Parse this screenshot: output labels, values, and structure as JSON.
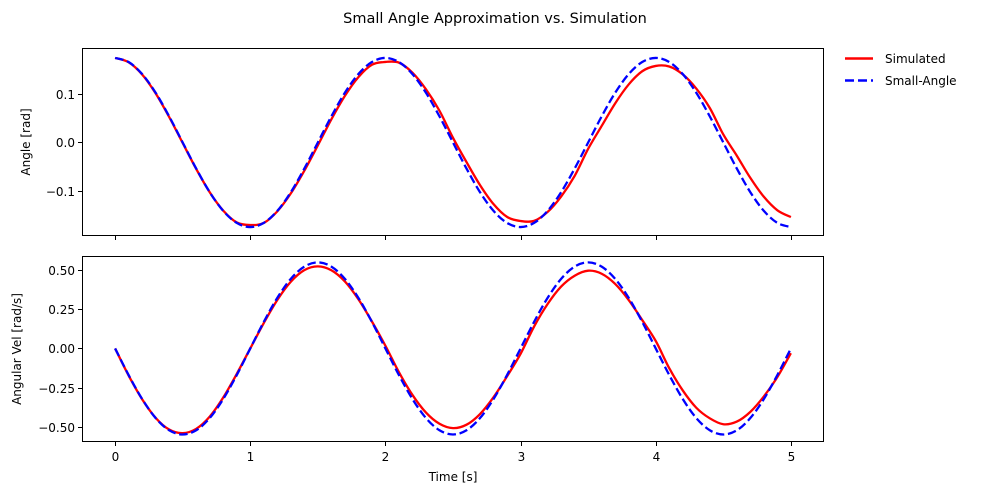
{
  "chart_data": {
    "title": "Small Angle Approximation vs. Simulation",
    "type": "line",
    "xlabel": "Time [s]",
    "xlim": [
      -0.245,
      5.245
    ],
    "xticks": [
      0,
      1,
      2,
      3,
      4,
      5
    ],
    "xtick_labels": [
      "0",
      "1",
      "2",
      "3",
      "4",
      "5"
    ],
    "grid": false,
    "legend": {
      "placement": "outside-top-right",
      "entries": [
        {
          "label": "Simulated",
          "color": "#ff0000",
          "style": "solid"
        },
        {
          "label": "Small-Angle",
          "color": "#0000ff",
          "style": "dashed"
        }
      ]
    },
    "x": [
      0,
      0.1,
      0.2,
      0.3,
      0.4,
      0.5,
      0.6,
      0.7,
      0.8,
      0.9,
      1,
      1.1,
      1.2,
      1.3,
      1.4,
      1.5,
      1.6,
      1.7,
      1.8,
      1.9,
      2,
      2.1,
      2.2,
      2.3,
      2.4,
      2.5,
      2.6,
      2.7,
      2.8,
      2.9,
      3,
      3.1,
      3.2,
      3.3,
      3.4,
      3.5,
      3.6,
      3.7,
      3.8,
      3.9,
      4,
      4.1,
      4.2,
      4.3,
      4.4,
      4.5,
      4.6,
      4.7,
      4.8,
      4.9,
      5
    ],
    "panels": [
      {
        "ylabel": "Angle [rad]",
        "ylim": [
          -0.193,
          0.195
        ],
        "yticks": [
          -0.1,
          0.0,
          0.1
        ],
        "ytick_labels": [
          "−0.1",
          "0.0",
          "0.1"
        ],
        "show_xtick_labels": false,
        "series": [
          {
            "name": "Simulated",
            "color": "#ff0000",
            "style": "solid",
            "values": [
              0.1745,
              0.1656,
              0.1404,
              0.1014,
              0.0526,
              -0.0011,
              -0.0546,
              -0.1026,
              -0.1406,
              -0.165,
              -0.1704,
              -0.166,
              -0.1421,
              -0.1051,
              -0.0582,
              -0.0059,
              0.0477,
              0.0961,
              0.1349,
              0.1604,
              0.1662,
              0.1648,
              0.144,
              0.1097,
              0.0655,
              0.0096,
              -0.0405,
              -0.088,
              -0.1273,
              -0.1536,
              -0.1621,
              -0.1618,
              -0.1433,
              -0.1115,
              -0.069,
              -0.0131,
              0.0341,
              0.0808,
              0.1198,
              0.147,
              0.158,
              0.1568,
              0.1405,
              0.1113,
              0.0712,
              0.0165,
              -0.0273,
              -0.0731,
              -0.1121,
              -0.1399,
              -0.1539
            ]
          },
          {
            "name": "Small-Angle",
            "color": "#0000ff",
            "style": "dashed",
            "values": [
              0.1745,
              0.166,
              0.1412,
              0.1026,
              0.0539,
              0.0,
              -0.0539,
              -0.1026,
              -0.1412,
              -0.166,
              -0.1745,
              -0.166,
              -0.1412,
              -0.1026,
              -0.0539,
              0.0,
              0.0539,
              0.1026,
              0.1412,
              0.166,
              0.1745,
              0.166,
              0.1412,
              0.1026,
              0.0539,
              0.0,
              -0.0539,
              -0.1026,
              -0.1412,
              -0.166,
              -0.1745,
              -0.166,
              -0.1412,
              -0.1026,
              -0.0539,
              0.0,
              0.0539,
              0.1026,
              0.1412,
              0.166,
              0.1745,
              0.166,
              0.1412,
              0.1026,
              0.0539,
              0.0,
              -0.0539,
              -0.1026,
              -0.1412,
              -0.166,
              -0.1745
            ]
          }
        ]
      },
      {
        "ylabel": "Angular Vel [rad/s]",
        "ylim": [
          -0.596,
          0.589
        ],
        "yticks": [
          -0.5,
          -0.25,
          0.0,
          0.25,
          0.5
        ],
        "ytick_labels": [
          "−0.50",
          "−0.25",
          "0.00",
          "0.25",
          "0.50"
        ],
        "show_xtick_labels": true,
        "series": [
          {
            "name": "Simulated",
            "color": "#ff0000",
            "style": "solid",
            "values": [
              0.0,
              -0.1725,
              -0.3236,
              -0.442,
              -0.5167,
              -0.5397,
              -0.5119,
              -0.4342,
              -0.3128,
              -0.162,
              0.0,
              0.162,
              0.3089,
              0.425,
              0.4989,
              0.523,
              0.4981,
              0.4267,
              0.3134,
              0.1717,
              0.0173,
              -0.1514,
              -0.2961,
              -0.4083,
              -0.4797,
              -0.5076,
              -0.4857,
              -0.4177,
              -0.3106,
              -0.1772,
              -0.0342,
              0.1395,
              0.2831,
              0.3943,
              0.4634,
              0.4955,
              0.4761,
              0.411,
              0.3086,
              0.1809,
              0.0476,
              -0.1258,
              -0.2676,
              -0.3778,
              -0.4452,
              -0.483,
              -0.466,
              -0.4039,
              -0.3056,
              -0.1818,
              -0.03
            ]
          },
          {
            "name": "Small-Angle",
            "color": "#0000ff",
            "style": "dashed",
            "values": [
              0.0,
              -0.1694,
              -0.3222,
              -0.4435,
              -0.5214,
              -0.5482,
              -0.5214,
              -0.4435,
              -0.3222,
              -0.1694,
              0.0,
              0.1694,
              0.3222,
              0.4435,
              0.5214,
              0.5482,
              0.5214,
              0.4435,
              0.3222,
              0.1694,
              0.0,
              -0.1694,
              -0.3222,
              -0.4435,
              -0.5214,
              -0.5482,
              -0.5214,
              -0.4435,
              -0.3222,
              -0.1694,
              0.0,
              0.1694,
              0.3222,
              0.4435,
              0.5214,
              0.5482,
              0.5214,
              0.4435,
              0.3222,
              0.1694,
              0.0,
              -0.1694,
              -0.3222,
              -0.4435,
              -0.5214,
              -0.5482,
              -0.5214,
              -0.4435,
              -0.3222,
              -0.1694,
              0.0
            ]
          }
        ]
      }
    ]
  }
}
